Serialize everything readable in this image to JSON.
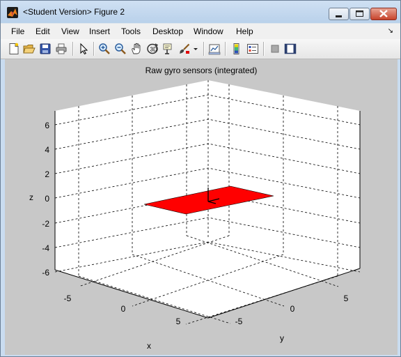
{
  "window": {
    "title": "<Student Version> Figure 2"
  },
  "menubar": {
    "items": [
      "File",
      "Edit",
      "View",
      "Insert",
      "Tools",
      "Desktop",
      "Window",
      "Help"
    ],
    "dock_glyph": "↘"
  },
  "toolbar": {
    "icons": [
      "new-figure-icon",
      "open-file-icon",
      "save-icon",
      "print-icon",
      "pointer-icon",
      "zoom-in-icon",
      "zoom-out-icon",
      "pan-icon",
      "rotate-3d-icon",
      "data-cursor-icon",
      "brush-icon",
      "link-plot-icon",
      "colorbar-icon",
      "legend-icon",
      "hide-plot-tools-icon",
      "show-plot-tools-icon"
    ]
  },
  "plot": {
    "title": "Raw gyro sensors (integrated)",
    "x_label": "x",
    "y_label": "y",
    "z_label": "z",
    "z_ticks": [
      "6",
      "4",
      "2",
      "0",
      "-2",
      "-4",
      "-6"
    ],
    "x_ticks": [
      "-5",
      "0",
      "5"
    ],
    "y_ticks": [
      "-5",
      "0",
      "5"
    ],
    "plane_color": "#ff0000",
    "axes_grid": "dashed"
  }
}
